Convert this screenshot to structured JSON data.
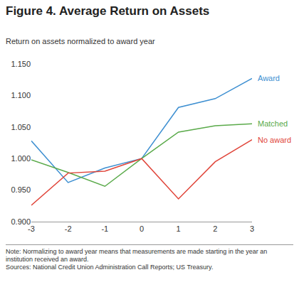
{
  "chart_data": {
    "type": "line",
    "title": "Figure 4. Average Return on Assets",
    "subtitle": "Return on assets normalized to award year",
    "x": [
      -3,
      -2,
      -1,
      0,
      1,
      2,
      3
    ],
    "xlim": [
      -3,
      3
    ],
    "xticks": [
      -3,
      -2,
      -1,
      0,
      1,
      2,
      3
    ],
    "ylim": [
      0.9,
      1.15
    ],
    "yticks": [
      {
        "value": 0.9,
        "label": "0.900"
      },
      {
        "value": 0.95,
        "label": "0.950"
      },
      {
        "value": 1.0,
        "label": "1.000"
      },
      {
        "value": 1.05,
        "label": "1.050"
      },
      {
        "value": 1.1,
        "label": "1.100"
      },
      {
        "value": 1.15,
        "label": "1.150"
      }
    ],
    "grid": false,
    "series": [
      {
        "name": "Award",
        "color": "#3d8fd1",
        "values": [
          1.028,
          0.962,
          0.985,
          1.0,
          1.081,
          1.095,
          1.127
        ]
      },
      {
        "name": "Matched",
        "color": "#5aaa4a",
        "values": [
          0.998,
          0.978,
          0.956,
          1.0,
          1.042,
          1.052,
          1.055
        ]
      },
      {
        "name": "No award",
        "color": "#e0453a",
        "values": [
          0.926,
          0.977,
          0.98,
          1.0,
          0.936,
          0.995,
          1.03
        ]
      }
    ],
    "note": "Note: Normalizing to award year means that measurements are made starting in the year an institution received an award.",
    "source": "Sources: National Credit Union Administration Call Reports; US Treasury."
  }
}
